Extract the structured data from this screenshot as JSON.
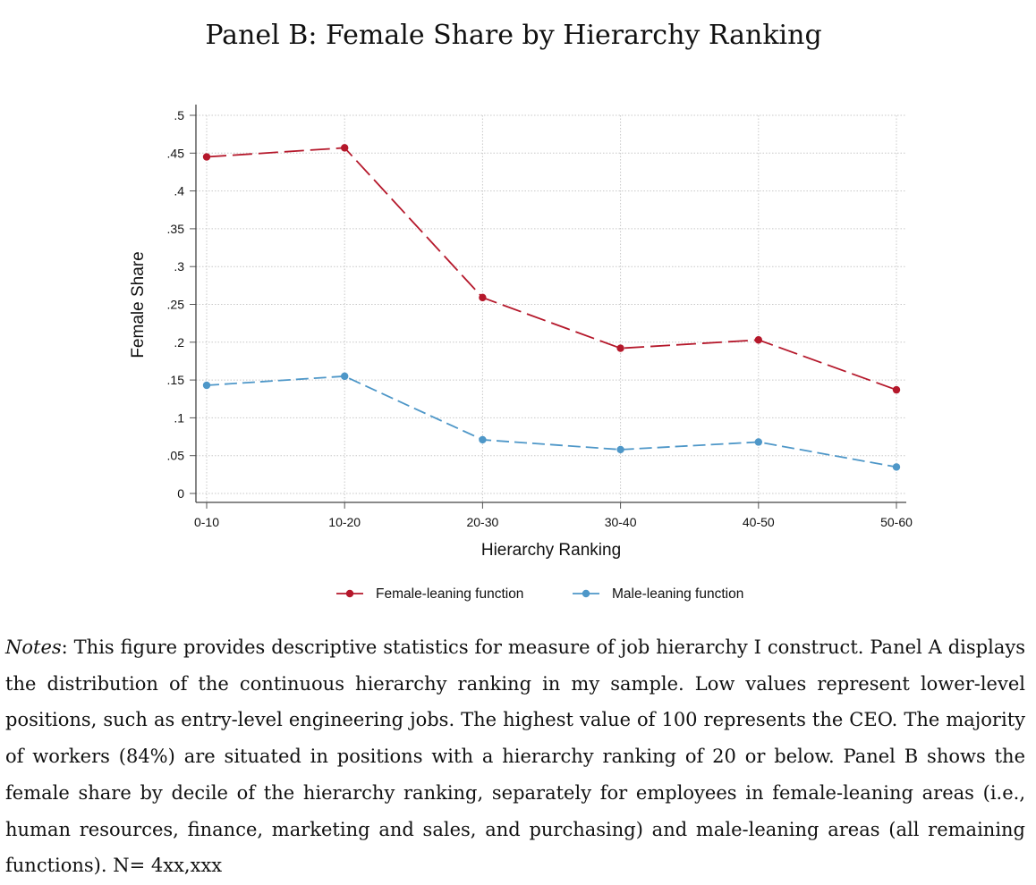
{
  "figure": {
    "title": "Panel B: Female Share by Hierarchy Ranking"
  },
  "chart_data": {
    "type": "line",
    "title": "Panel B: Female Share by Hierarchy Ranking",
    "xlabel": "Hierarchy Ranking",
    "ylabel": "Female Share",
    "categories": [
      "0-10",
      "10-20",
      "20-30",
      "30-40",
      "40-50",
      "50-60"
    ],
    "yticks": [
      "0",
      ".05",
      ".1",
      ".15",
      ".2",
      ".25",
      ".3",
      ".35",
      ".4",
      ".45",
      ".5"
    ],
    "ylim": [
      0,
      0.5
    ],
    "grid": true,
    "legend_position": "bottom",
    "series": [
      {
        "name": "Female-leaning function",
        "color": "#b5182b",
        "values": [
          0.445,
          0.457,
          0.259,
          0.192,
          0.203,
          0.137
        ]
      },
      {
        "name": "Male-leaning function",
        "color": "#4e97c8",
        "values": [
          0.143,
          0.155,
          0.071,
          0.058,
          0.068,
          0.035
        ]
      }
    ]
  },
  "notes": {
    "label": "Notes",
    "text": ": This figure provides descriptive statistics for measure of job hierarchy I construct. Panel A displays the distribution of the continuous hierarchy ranking in my sample. Low values represent lower-level positions, such as entry-level engineering jobs. The highest value of 100 represents the CEO. The majority of workers (84%) are situated in positions with a hierarchy ranking of 20 or below. Panel B shows the female share by decile of the hierarchy ranking, separately for employees in female-leaning areas (i.e., human resources, finance, marketing and sales, and purchasing) and male-leaning areas (all remaining functions). N= 4xx,xxx"
  }
}
